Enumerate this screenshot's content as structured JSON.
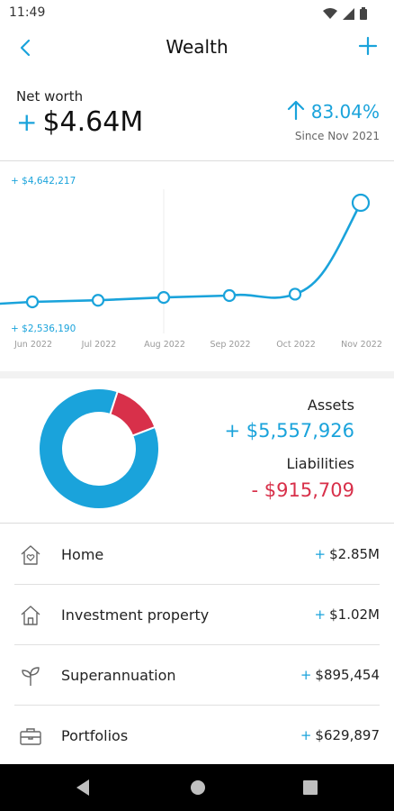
{
  "status": {
    "time": "11:49"
  },
  "appbar": {
    "title": "Wealth",
    "back_icon": "chevron-left-icon",
    "add_icon": "plus-icon"
  },
  "networth": {
    "label": "Net worth",
    "sign": "+",
    "value": "$4.64M",
    "change": "83.04%",
    "since": "Since Nov 2021"
  },
  "chart_data": {
    "type": "line",
    "categories": [
      "Jun 2022",
      "Jul 2022",
      "Aug 2022",
      "Sep 2022",
      "Oct 2022",
      "Nov 2022"
    ],
    "values": [
      2536190,
      2570000,
      2630000,
      2670000,
      2700000,
      4642217
    ],
    "max_label": "+ $4,642,217",
    "min_label": "+ $2,536,190",
    "ylim": [
      2536190,
      4642217
    ],
    "grid": false,
    "color": "#1aa3db"
  },
  "summary": {
    "assets_label": "Assets",
    "assets_value": "+ $5,557,926",
    "liabilities_label": "Liabilities",
    "liabilities_value": "-  $915,709",
    "assets_amount": 5557926,
    "liabilities_amount": 915709,
    "assets_color": "#1aa3db",
    "liabilities_color": "#d8304a"
  },
  "items": [
    {
      "label": "Home",
      "sign": "+",
      "value": "$2.85M",
      "icon": "home-heart-icon"
    },
    {
      "label": "Investment property",
      "sign": "+",
      "value": "$1.02M",
      "icon": "house-icon"
    },
    {
      "label": "Superannuation",
      "sign": "+",
      "value": "$895,454",
      "icon": "sprout-icon"
    },
    {
      "label": "Portfolios",
      "sign": "+",
      "value": "$629,897",
      "icon": "briefcase-icon"
    }
  ]
}
